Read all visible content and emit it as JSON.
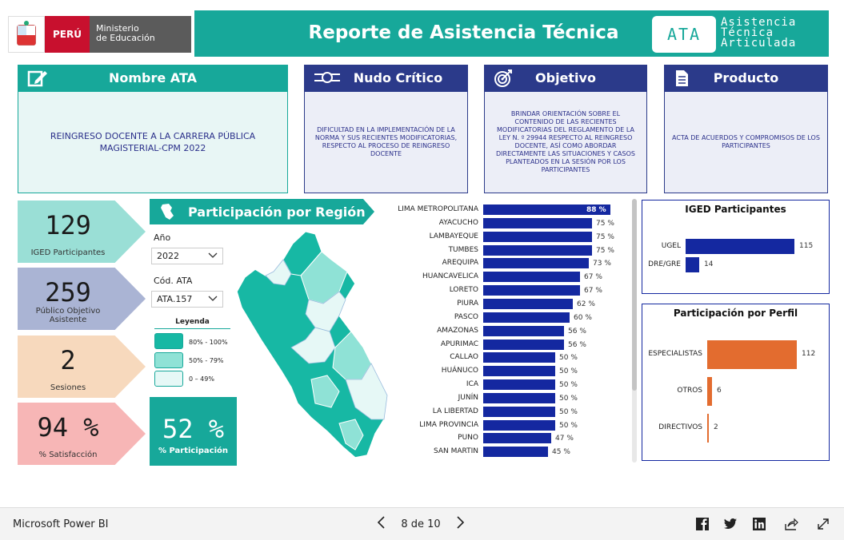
{
  "header": {
    "country": "PERÚ",
    "ministry_line1": "Ministerio",
    "ministry_line2": "de Educación",
    "title": "Reporte de Asistencia Técnica",
    "logo_text": "ATA",
    "logo_sub_line1": "Asistencia",
    "logo_sub_line2": "Técnica",
    "logo_sub_line3": "Articulada",
    "accent_color": "#17a89a",
    "navy_color": "#2b3a8a"
  },
  "cards": {
    "nombre": {
      "title": "Nombre ATA",
      "icon": "edit-icon",
      "text": "REINGRESO DOCENTE A LA CARRERA PÚBLICA MAGISTERIAL-CPM 2022"
    },
    "nudo": {
      "title": "Nudo Crítico",
      "icon": "knot-icon",
      "text": "DIFICULTAD EN LA IMPLEMENTACIÓN DE LA NORMA Y SUS RECIENTES MODIFICATORIAS, RESPECTO AL PROCESO DE REINGRESO DOCENTE"
    },
    "objetivo": {
      "title": "Objetivo",
      "icon": "target-icon",
      "text": "BRINDAR ORIENTACIÓN SOBRE  EL CONTENIDO DE LAS RECIENTES MODIFICATORIAS DEL REGLAMENTO DE LA LEY N. º 29944 RESPECTO AL REINGRESO DOCENTE, ASÍ COMO ABORDAR DIRECTAMENTE LAS SITUACIONES Y CASOS PLANTEADOS EN LA SESIÓN POR LOS PARTICIPANTES"
    },
    "producto": {
      "title": "Producto",
      "icon": "document-icon",
      "text": "ACTA DE ACUERDOS Y COMPROMISOS DE LOS PARTICIPANTES"
    }
  },
  "kpis": [
    {
      "value": "129",
      "label": "IGED Participantes",
      "color": "#9adfd6"
    },
    {
      "value": "259",
      "label": "Público Objetivo Asistente",
      "color": "#aab4d4"
    },
    {
      "value": "2",
      "label": "Sesiones",
      "color": "#f7d9bd"
    },
    {
      "value": "94 %",
      "label": "% Satisfacción",
      "color": "#f7b6b6"
    }
  ],
  "region": {
    "title": "Participación por Región",
    "year_label": "Año",
    "year_value": "2022",
    "ata_label": "Cód. ATA",
    "ata_value": "ATA.157",
    "legend_title": "Leyenda",
    "legend": [
      {
        "label": "80% - 100%",
        "color": "#17b8a4"
      },
      {
        "label": "50% - 79%",
        "color": "#8fe2d6"
      },
      {
        "label": "0 – 49%",
        "color": "#e6f8f6"
      }
    ],
    "participation_value": "52 %",
    "participation_label": "% Participación"
  },
  "chart_data": [
    {
      "type": "bar",
      "orientation": "horizontal",
      "title": "",
      "bar_color": "#1428a0",
      "categories": [
        "LIMA METROPOLITANA",
        "AYACUCHO",
        "LAMBAYEQUE",
        "TUMBES",
        "AREQUIPA",
        "HUANCAVELICA",
        "LORETO",
        "PIURA",
        "PASCO",
        "AMAZONAS",
        "APURIMAC",
        "CALLAO",
        "HUÁNUCO",
        "ICA",
        "JUNÍN",
        "LA LIBERTAD",
        "LIMA PROVINCIA",
        "PUNO",
        "SAN MARTIN"
      ],
      "values": [
        88,
        75,
        75,
        75,
        73,
        67,
        67,
        62,
        60,
        56,
        56,
        50,
        50,
        50,
        50,
        50,
        50,
        47,
        45
      ],
      "labels": [
        "88 %",
        "75 %",
        "75 %",
        "75 %",
        "73 %",
        "67 %",
        "67 %",
        "62 %",
        "60 %",
        "56 %",
        "56 %",
        "50 %",
        "50 %",
        "50 %",
        "50 %",
        "50 %",
        "50 %",
        "47 %",
        "45 %"
      ]
    },
    {
      "type": "bar",
      "orientation": "horizontal",
      "title": "IGED Participantes",
      "bar_color": "#1428a0",
      "categories": [
        "UGEL",
        "DRE/GRE"
      ],
      "values": [
        115,
        14
      ]
    },
    {
      "type": "bar",
      "orientation": "horizontal",
      "title": "Participación por Perfil",
      "bar_color": "#e36c2f",
      "categories": [
        "ESPECIALISTAS",
        "OTROS",
        "DIRECTIVOS"
      ],
      "values": [
        112,
        6,
        2
      ]
    }
  ],
  "footer": {
    "brand": "Microsoft Power BI",
    "page": "8 de 10",
    "share_icons": [
      "facebook-icon",
      "twitter-icon",
      "linkedin-icon",
      "share-icon",
      "fullscreen-icon"
    ]
  }
}
